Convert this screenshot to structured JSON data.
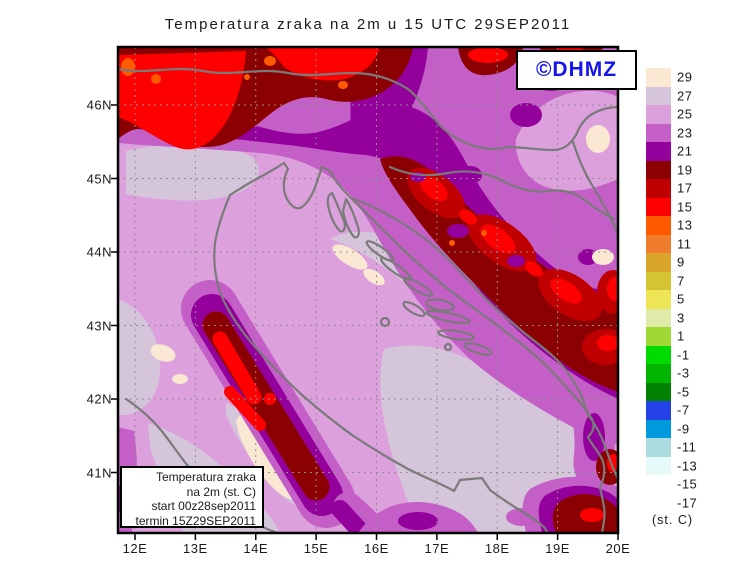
{
  "title": "Temperatura zraka na 2m u 15 UTC 29SEP2011",
  "logo": {
    "text": "©DHMZ",
    "color": "#1616EA"
  },
  "info_box": {
    "line1": "Temperatura zraka",
    "line2": "na 2m (st. C)",
    "line3": "start 00z28sep2011",
    "line4": "termin 15Z29SEP2011"
  },
  "axes": {
    "lon_labels": [
      "12E",
      "13E",
      "14E",
      "15E",
      "16E",
      "17E",
      "18E",
      "19E",
      "20E"
    ],
    "lat_labels": [
      "46N",
      "45N",
      "44N",
      "43N",
      "42N",
      "41N"
    ]
  },
  "colorbar": {
    "unit_label": "(st. C)",
    "items": [
      {
        "label": "29",
        "color": "#FBE8D3"
      },
      {
        "label": "27",
        "color": "#D5C5DA"
      },
      {
        "label": "25",
        "color": "#DCA0DC"
      },
      {
        "label": "23",
        "color": "#C45FC8"
      },
      {
        "label": "21",
        "color": "#94009C"
      },
      {
        "label": "19",
        "color": "#8B0000"
      },
      {
        "label": "17",
        "color": "#C00000"
      },
      {
        "label": "15",
        "color": "#FF0000"
      },
      {
        "label": "13",
        "color": "#FF5A00"
      },
      {
        "label": "11",
        "color": "#EF7D2D"
      },
      {
        "label": "9",
        "color": "#D9A62B"
      },
      {
        "label": "7",
        "color": "#D4C431"
      },
      {
        "label": "5",
        "color": "#EDE456"
      },
      {
        "label": "3",
        "color": "#DFEBA8"
      },
      {
        "label": "1",
        "color": "#9FD936"
      },
      {
        "label": "-1",
        "color": "#00DC00"
      },
      {
        "label": "-3",
        "color": "#00B400"
      },
      {
        "label": "-5",
        "color": "#008200"
      },
      {
        "label": "-7",
        "color": "#2442E6"
      },
      {
        "label": "-9",
        "color": "#009ADC"
      },
      {
        "label": "-11",
        "color": "#AADCE0"
      },
      {
        "label": "-13",
        "color": "#E6FAFA"
      },
      {
        "label": "-15",
        "color": "#FFFFFF"
      },
      {
        "label": "-17",
        "color": "#FFFFFF"
      }
    ]
  },
  "map": {
    "palette": {
      "plum": "#DCA0DC",
      "lavender": "#D5C5DA",
      "cream": "#FBE8D3",
      "orchid": "#C45FC8",
      "magenta": "#94009C",
      "darkred": "#8B0000",
      "red2": "#C00000",
      "red": "#FF0000",
      "orange": "#FF5A00",
      "coast": "#7A7A7A",
      "grid": "#909090",
      "frame": "#000000"
    }
  }
}
